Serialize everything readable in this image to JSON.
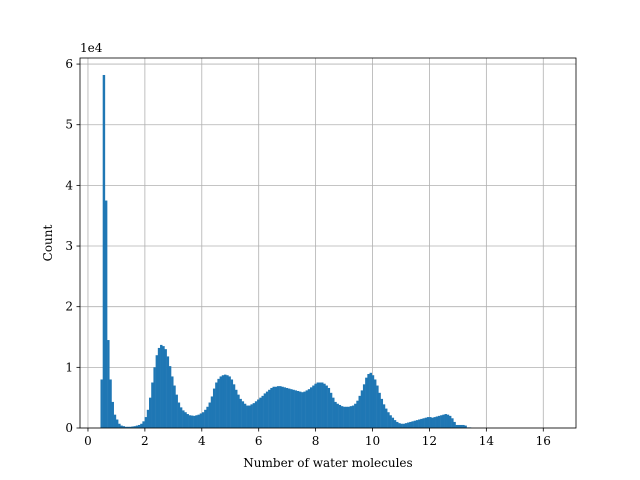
{
  "chart_data": {
    "type": "bar",
    "xlabel": "Number of water molecules",
    "ylabel": "Count",
    "scale_label": "1e4",
    "scale_factor": 10000,
    "xlim": [
      -0.28,
      17.15
    ],
    "ylim": [
      0,
      61000
    ],
    "xticks": [
      0,
      2,
      4,
      6,
      8,
      10,
      12,
      14,
      16
    ],
    "yticks": [
      0,
      10000,
      20000,
      30000,
      40000,
      50000,
      60000
    ],
    "ytick_labels": [
      "0",
      "1",
      "2",
      "3",
      "4",
      "5",
      "6"
    ],
    "grid": true,
    "bar_color": "#1f77b4",
    "bin_width": 0.0775,
    "bin_start": 0.44,
    "values": [
      8000,
      58200,
      37500,
      14500,
      8000,
      4300,
      2200,
      1400,
      700,
      400,
      300,
      200,
      200,
      200,
      250,
      300,
      400,
      500,
      700,
      1100,
      1800,
      3000,
      5000,
      7500,
      10000,
      12000,
      13200,
      13700,
      13500,
      13000,
      11800,
      10200,
      8500,
      7000,
      5500,
      4200,
      3400,
      2900,
      2600,
      2300,
      2100,
      2050,
      2000,
      2100,
      2200,
      2400,
      2600,
      3000,
      3500,
      4200,
      5200,
      6500,
      7500,
      8100,
      8500,
      8700,
      8800,
      8700,
      8500,
      8000,
      7200,
      6300,
      5500,
      4800,
      4400,
      4000,
      3700,
      3700,
      3900,
      4100,
      4400,
      4700,
      5000,
      5300,
      5700,
      6000,
      6300,
      6600,
      6800,
      6800,
      6900,
      6900,
      6800,
      6700,
      6600,
      6500,
      6400,
      6300,
      6200,
      6100,
      6000,
      5900,
      6000,
      6200,
      6400,
      6700,
      7000,
      7300,
      7500,
      7500,
      7500,
      7300,
      7000,
      6600,
      5800,
      5000,
      4300,
      4000,
      3800,
      3600,
      3500,
      3500,
      3500,
      3600,
      3700,
      4000,
      4500,
      5300,
      6200,
      7200,
      8300,
      8900,
      9100,
      8700,
      8000,
      7000,
      5800,
      4800,
      3900,
      3200,
      2600,
      2100,
      1700,
      1300,
      1000,
      800,
      700,
      700,
      800,
      900,
      1000,
      1100,
      1200,
      1300,
      1400,
      1500,
      1600,
      1700,
      1800,
      1800,
      1700,
      1800,
      1900,
      2000,
      2100,
      2200,
      2300,
      2200,
      2000,
      1600,
      1000,
      500,
      500,
      500,
      500,
      400,
      100,
      100
    ]
  }
}
